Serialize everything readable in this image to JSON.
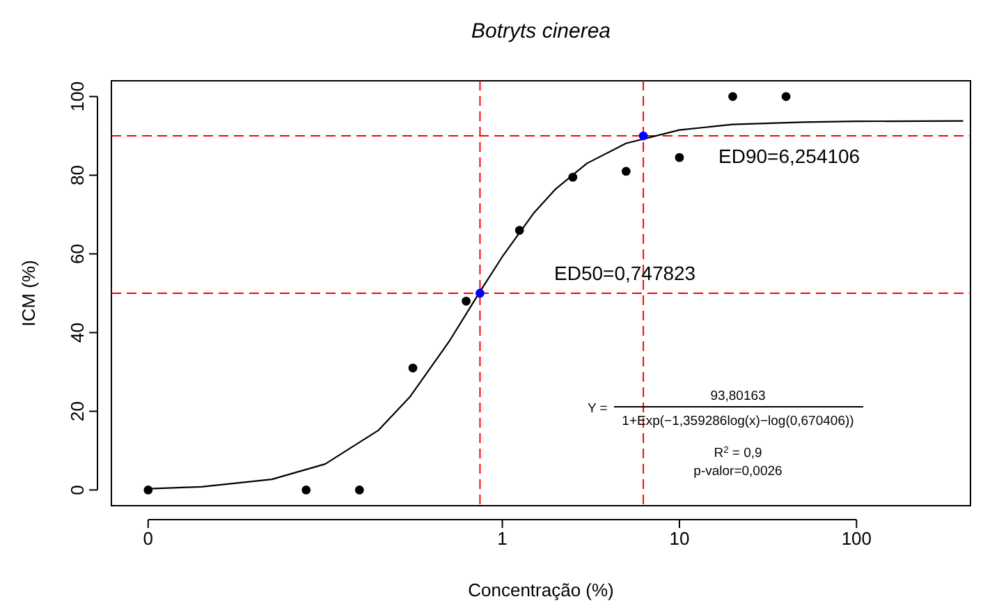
{
  "chart_data": {
    "type": "scatter",
    "title": "Botryts cinerea",
    "xlabel": "Concentração (%)",
    "ylabel": "ICM (%)",
    "log": "x",
    "xlim": [
      0.0062,
      440
    ],
    "ylim": [
      -4,
      104
    ],
    "xticks": [
      {
        "value": 0.01,
        "label": "0"
      },
      1,
      10,
      100
    ],
    "yticks": [
      0,
      20,
      40,
      60,
      80,
      100
    ],
    "grid": false,
    "marker": "circle",
    "series": [
      {
        "type": "line",
        "color": "#000000",
        "marker": "none",
        "line_style": "solid",
        "x": [
          0.01,
          0.02,
          0.05,
          0.1,
          0.2,
          0.3,
          0.5,
          0.75,
          1,
          1.5,
          2,
          3,
          5,
          10,
          20,
          50,
          100,
          400
        ],
        "values": [
          0.3,
          0.8,
          2.7,
          6.6,
          15.2,
          23.6,
          37.7,
          50.5,
          59.3,
          70.3,
          76.5,
          83.0,
          88.1,
          91.5,
          92.9,
          93.5,
          93.7,
          93.8
        ]
      },
      {
        "color": "#000000",
        "x": [
          0.01,
          0.078,
          0.156,
          0.3125,
          0.625,
          1.25,
          2.5,
          5,
          10,
          20,
          40
        ],
        "values": [
          0,
          0,
          0,
          31,
          48,
          66,
          79.5,
          81,
          84.5,
          100,
          100
        ]
      },
      {
        "color": "#0000ff",
        "x": [
          0.747823,
          6.254106
        ],
        "values": [
          50,
          90
        ]
      }
    ],
    "ref_lines": [
      {
        "axis": "x",
        "value": 0.747823,
        "color": "#ff0000",
        "line_style": "dashed"
      },
      {
        "axis": "x",
        "value": 6.254106,
        "color": "#ff0000",
        "line_style": "dashed"
      },
      {
        "axis": "y",
        "value": 50,
        "color": "#ff0000",
        "line_style": "dashed"
      },
      {
        "axis": "y",
        "value": 90,
        "color": "#ff0000",
        "line_style": "dashed"
      }
    ],
    "annotations": [
      "ED50=0,747823",
      "ED90=6,254106",
      "Y =",
      "93,80163",
      "1+Exp(−1,359286log(x)−log(0,670406))",
      "R$^{2}$ = 0,9",
      "p-valor=0,0026"
    ]
  }
}
